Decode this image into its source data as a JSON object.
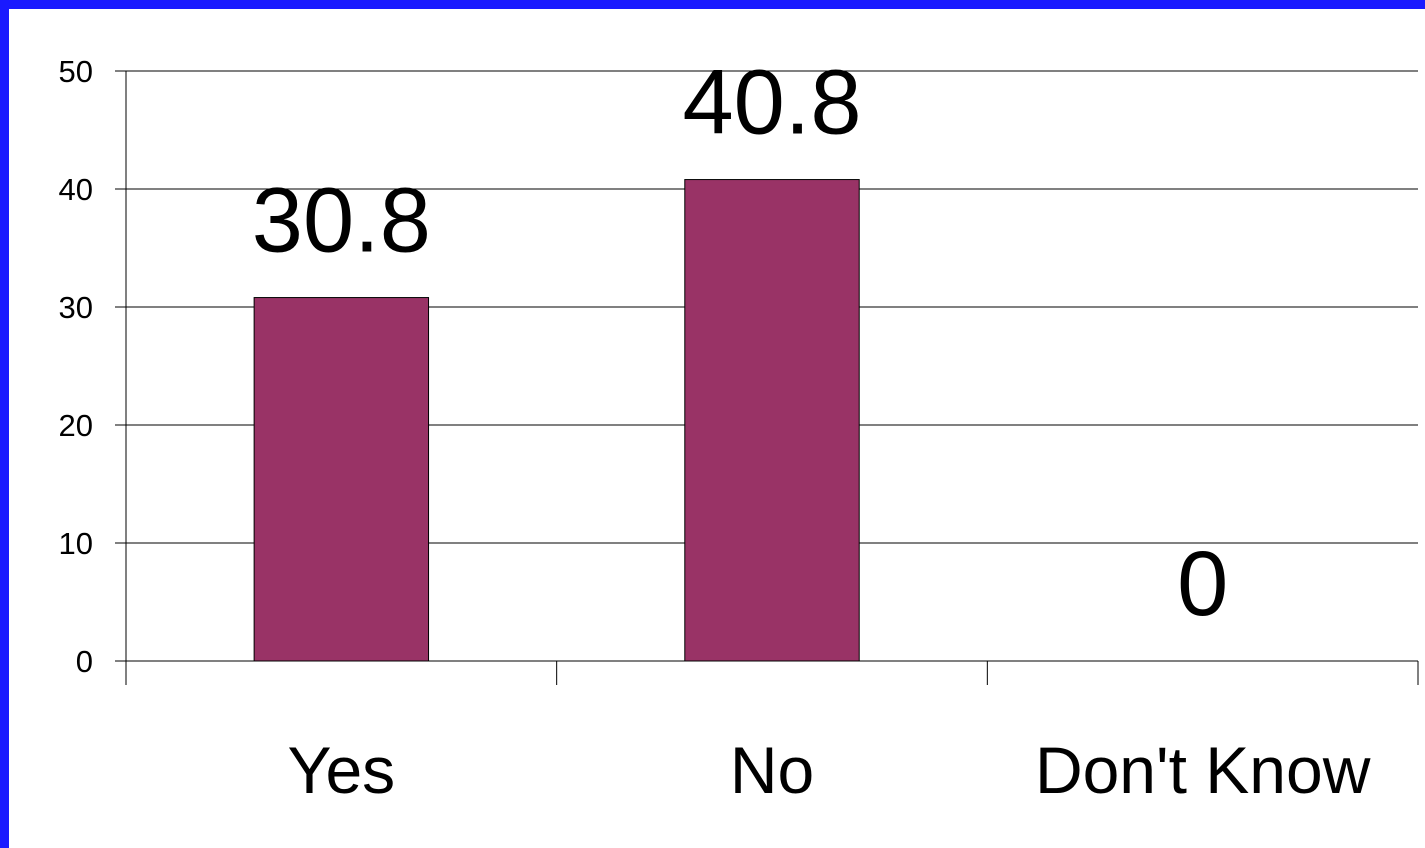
{
  "chart_data": {
    "type": "bar",
    "title": "",
    "xlabel": "",
    "ylabel": "",
    "categories": [
      "Yes",
      "No",
      "Don't Know"
    ],
    "values": [
      30.8,
      40.8,
      0
    ],
    "data_labels": [
      "30.8",
      "40.8",
      "0"
    ],
    "ylim": [
      0,
      50
    ],
    "yticks": [
      0,
      10,
      20,
      30,
      40,
      50
    ],
    "ytick_labels": [
      "0",
      "10",
      "20",
      "30",
      "40",
      "50"
    ],
    "grid": true,
    "legend": "none",
    "bar_color": "#993366",
    "frame_color": "#1a1aff"
  }
}
